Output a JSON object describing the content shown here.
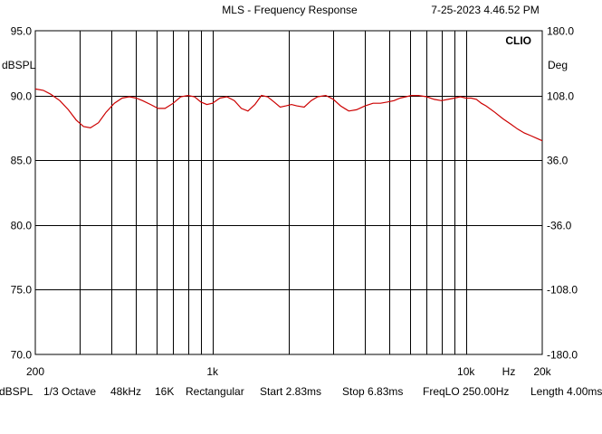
{
  "chart_data": {
    "type": "line",
    "title": "MLS - Frequency Response",
    "timestamp": "7-25-2023 4.46.52 PM",
    "brand": "CLIO",
    "xscale": "log",
    "xlim": [
      200,
      20000
    ],
    "ylim": [
      70,
      95
    ],
    "y2lim": [
      -180,
      180
    ],
    "ylabel": "dBSPL",
    "y2label": "Deg",
    "xunit": "Hz",
    "grid": true,
    "yticks": [
      "95.0",
      "90.0",
      "85.0",
      "80.0",
      "75.0",
      "70.0"
    ],
    "y2ticks": [
      "180.0",
      "108.0",
      "36.0",
      "-36.0",
      "-108.0",
      "-180.0"
    ],
    "xtick_labels": [
      {
        "value": 200,
        "label": "200"
      },
      {
        "value": 1000,
        "label": "1k"
      },
      {
        "value": 10000,
        "label": "10k"
      },
      {
        "value": 20000,
        "label": "20k"
      }
    ],
    "line_color": "#cc0000",
    "series": [
      {
        "x": [
          200,
          215,
          230,
          250,
          270,
          290,
          310,
          330,
          355,
          380,
          410,
          440,
          470,
          500,
          530,
          570,
          610,
          650,
          700,
          750,
          800,
          850,
          900,
          950,
          1000,
          1070,
          1140,
          1220,
          1300,
          1380,
          1470,
          1560,
          1650,
          1750,
          1850,
          1950,
          2050,
          2150,
          2300,
          2450,
          2600,
          2800,
          3000,
          3200,
          3450,
          3700,
          4000,
          4300,
          4600,
          4900,
          5200,
          5500,
          5800,
          6100,
          6500,
          7000,
          7500,
          8000,
          8500,
          9000,
          9500,
          10000,
          10500,
          11000,
          11500,
          12000,
          13000,
          14000,
          15000,
          16000,
          17000,
          18000,
          19000,
          20000
        ],
        "y": [
          90.5,
          90.4,
          90.1,
          89.6,
          88.9,
          88.1,
          87.6,
          87.5,
          87.9,
          88.7,
          89.4,
          89.8,
          89.9,
          89.8,
          89.6,
          89.3,
          89.0,
          89.0,
          89.4,
          89.9,
          90.0,
          89.9,
          89.5,
          89.3,
          89.4,
          89.8,
          89.9,
          89.6,
          89.0,
          88.8,
          89.3,
          90.0,
          89.9,
          89.5,
          89.1,
          89.2,
          89.3,
          89.2,
          89.1,
          89.6,
          89.9,
          90.0,
          89.7,
          89.2,
          88.8,
          88.9,
          89.2,
          89.4,
          89.4,
          89.5,
          89.6,
          89.8,
          89.9,
          90.0,
          90.0,
          89.9,
          89.7,
          89.6,
          89.7,
          89.8,
          89.9,
          89.8,
          89.8,
          89.7,
          89.4,
          89.2,
          88.7,
          88.2,
          87.8,
          87.4,
          87.1,
          86.9,
          86.7,
          86.5
        ]
      }
    ]
  },
  "footer": {
    "unit": "dBSPL",
    "smoothing": "1/3 Octave",
    "sample_rate": "48kHz",
    "fft_size": "16K",
    "window": "Rectangular",
    "start": "Start 2.83ms",
    "stop": "Stop 6.83ms",
    "freq_lo": "FreqLO 250.00Hz",
    "length": "Length 4.00ms"
  }
}
